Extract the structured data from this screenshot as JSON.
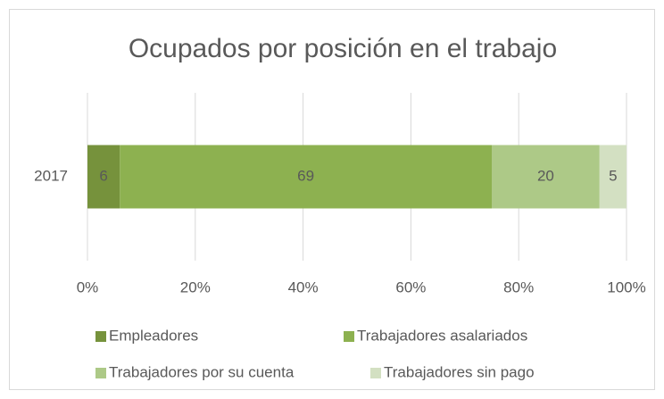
{
  "chart_data": {
    "type": "stacked_bar_horizontal",
    "title": "Ocupados por posición en el trabajo",
    "categories": [
      "2017"
    ],
    "series": [
      {
        "name": "Empleadores",
        "color": "#76923c",
        "values": [
          6
        ]
      },
      {
        "name": "Trabajadores asalariados",
        "color": "#8db150",
        "values": [
          69
        ]
      },
      {
        "name": "Trabajadores por su cuenta",
        "color": "#adc987",
        "values": [
          20
        ]
      },
      {
        "name": "Trabajadores sin pago",
        "color": "#d3e0c2",
        "values": [
          5
        ]
      }
    ],
    "xlim": [
      0,
      100
    ],
    "xticks": [
      {
        "value": 0,
        "label": "0%"
      },
      {
        "value": 20,
        "label": "20%"
      },
      {
        "value": 40,
        "label": "40%"
      },
      {
        "value": 60,
        "label": "60%"
      },
      {
        "value": 80,
        "label": "80%"
      },
      {
        "value": 100,
        "label": "100%"
      }
    ],
    "grid": true,
    "legend": "bottom"
  }
}
